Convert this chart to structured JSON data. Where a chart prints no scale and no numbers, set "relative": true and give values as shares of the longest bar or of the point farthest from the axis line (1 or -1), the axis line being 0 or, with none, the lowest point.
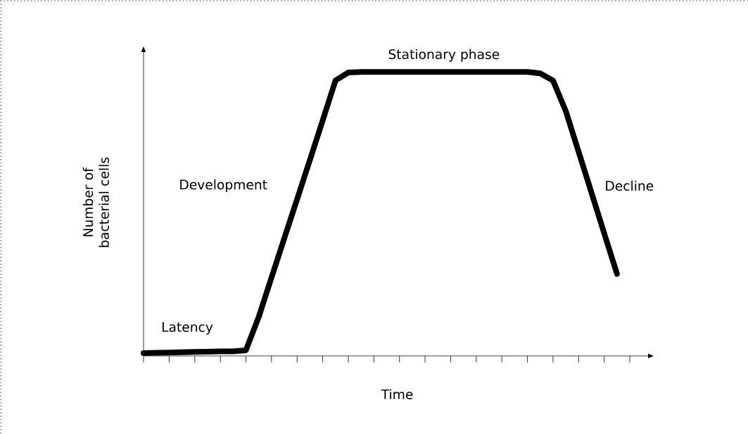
{
  "chart_data": {
    "type": "line",
    "relative": true,
    "xlabel": "Time",
    "ylabel": "Number of bacterial cells",
    "categories": [
      null,
      null,
      null,
      null,
      null,
      null,
      null,
      null,
      null,
      null,
      null,
      null,
      null,
      null,
      null,
      null,
      null,
      null,
      null,
      null,
      null,
      null,
      null,
      null,
      null,
      null,
      null,
      null,
      null,
      null,
      null,
      null,
      null,
      null,
      null,
      null,
      null,
      null,
      null
    ],
    "series": [
      {
        "color": "#000000",
        "values": [
          0.01,
          0.011,
          0.012,
          0.013,
          0.014,
          0.015,
          0.016,
          0.016,
          0.02,
          0.137,
          0.276,
          0.414,
          0.552,
          0.69,
          0.829,
          0.97,
          0.998,
          1,
          1,
          1,
          1,
          1,
          1,
          1,
          1,
          1,
          1,
          1,
          1,
          1,
          1,
          0.995,
          0.97,
          0.862,
          0.719,
          0.576,
          0.432,
          0.289,
          null
        ]
      }
    ],
    "marker": "none",
    "line_style": "solid",
    "grid": false,
    "annotations": [
      "Latency",
      "Development",
      "Stationary phase",
      "Decline"
    ]
  }
}
